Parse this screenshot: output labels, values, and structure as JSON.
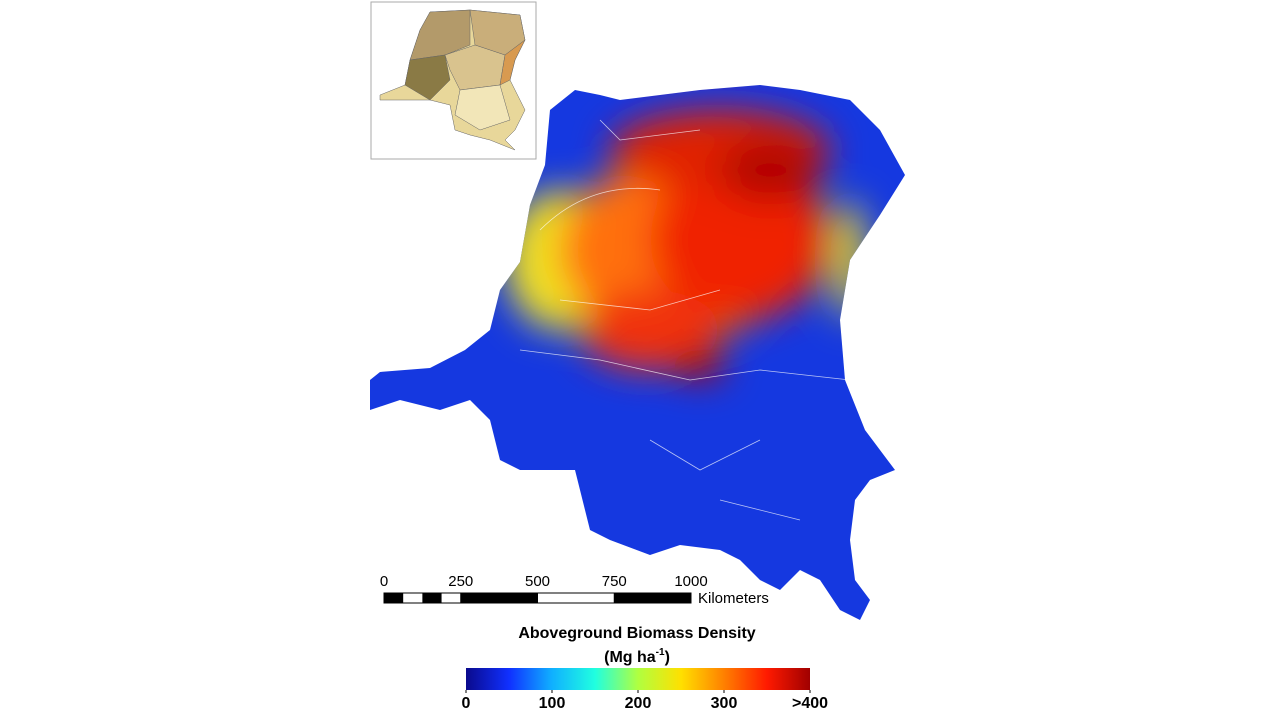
{
  "map": {
    "scale_bar": {
      "ticks": [
        0,
        250,
        500,
        750,
        1000
      ],
      "unit": "Kilometers"
    },
    "legend": {
      "title": "Aboveground Biomass Density",
      "unit_main": "(Mg ha",
      "unit_sup": "-1",
      "unit_end": ")",
      "range": [
        0,
        400
      ],
      "ticks": [
        0,
        100,
        200,
        300,
        {
          "value": 400,
          "label": ">400"
        }
      ],
      "colors": [
        "#0a0a8c",
        "#1030ff",
        "#10b0ff",
        "#20ffe0",
        "#b0ff40",
        "#ffe000",
        "#ff8000",
        "#ff1a00",
        "#a00000"
      ]
    }
  }
}
